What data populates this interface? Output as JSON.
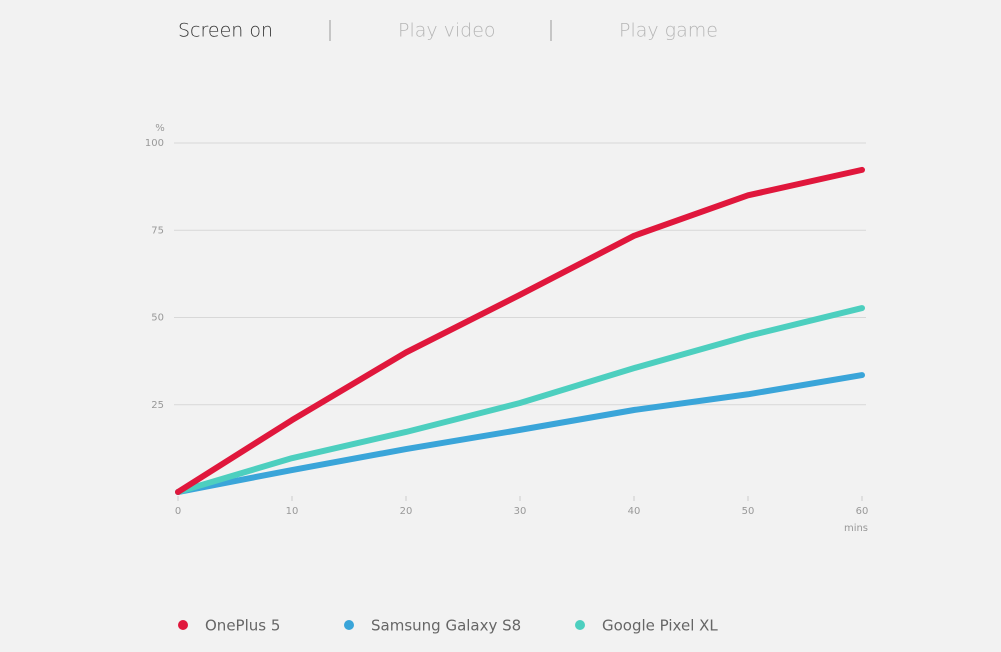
{
  "tabs": [
    "Screen on",
    "Play video",
    "Play game"
  ],
  "active_tab": 0,
  "chart_data": {
    "type": "line",
    "y_label": "%",
    "x_label": "mins",
    "x": [
      0,
      10,
      20,
      30,
      40,
      50,
      60
    ],
    "xlim": [
      0,
      60
    ],
    "xticks": [
      0,
      10,
      20,
      30,
      40,
      50,
      60
    ],
    "ylim": [
      0,
      100
    ],
    "yticks": [
      25,
      50,
      75,
      100
    ],
    "grid": true,
    "series": [
      {
        "name": "OnePlus 5",
        "color": "#e0173c",
        "values": [
          0,
          20.6,
          40,
          56.5,
          73.4,
          85,
          92.3
        ]
      },
      {
        "name": "Samsung Galaxy S8",
        "color": "#3aa5d9",
        "values": [
          0,
          6.3,
          12.3,
          17.8,
          23.5,
          28,
          33.5
        ]
      },
      {
        "name": "Google Pixel XL",
        "color": "#4dcfbf",
        "values": [
          0,
          9.7,
          17.2,
          25.5,
          35.5,
          44.7,
          52.7
        ]
      }
    ]
  }
}
